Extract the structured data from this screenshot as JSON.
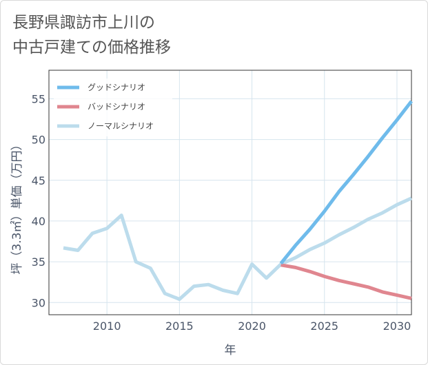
{
  "chart_data": {
    "type": "line",
    "title_lines": [
      "長野県諏訪市上川の",
      "中古戸建ての価格推移"
    ],
    "xlabel": "年",
    "ylabel": "坪（3.3㎡）単価（万円）",
    "xlim": [
      2006,
      2031
    ],
    "ylim": [
      28.5,
      58.5
    ],
    "xticks": [
      2010,
      2015,
      2020,
      2025,
      2030
    ],
    "yticks": [
      30,
      35,
      40,
      45,
      50,
      55
    ],
    "series": [
      {
        "name": "グッドシナリオ",
        "color": "#6fbbeb",
        "width": 5,
        "x": [
          2022,
          2023,
          2024,
          2025,
          2026,
          2027,
          2028,
          2029,
          2030,
          2031
        ],
        "y": [
          34.8,
          37.0,
          39.0,
          41.2,
          43.6,
          45.7,
          47.9,
          50.2,
          52.4,
          54.7
        ]
      },
      {
        "name": "バッドシナリオ",
        "color": "#e0868f",
        "width": 5,
        "x": [
          2022,
          2023,
          2024,
          2025,
          2026,
          2027,
          2028,
          2029,
          2030,
          2031
        ],
        "y": [
          34.6,
          34.3,
          33.8,
          33.2,
          32.7,
          32.3,
          31.9,
          31.3,
          30.9,
          30.5
        ]
      },
      {
        "name": "ノーマルシナリオ",
        "color": "#bcdcec",
        "width": 5,
        "x": [
          2007,
          2008,
          2009,
          2010,
          2011,
          2012,
          2013,
          2014,
          2015,
          2016,
          2017,
          2018,
          2019,
          2020,
          2021,
          2022,
          2023,
          2024,
          2025,
          2026,
          2027,
          2028,
          2029,
          2030,
          2031
        ],
        "y": [
          36.7,
          36.4,
          38.5,
          39.1,
          40.7,
          35.0,
          34.2,
          31.1,
          30.4,
          32.0,
          32.2,
          31.5,
          31.1,
          34.7,
          33.0,
          34.7,
          35.5,
          36.5,
          37.3,
          38.3,
          39.2,
          40.2,
          41.0,
          42.0,
          42.8
        ]
      }
    ]
  }
}
